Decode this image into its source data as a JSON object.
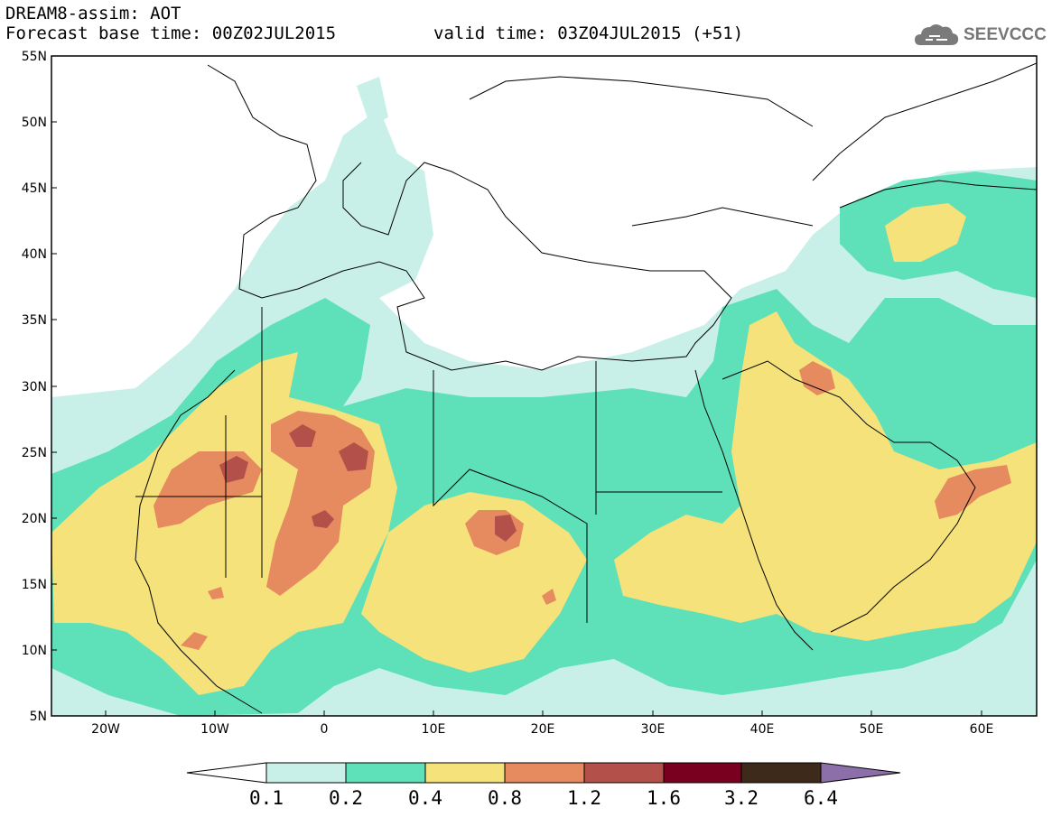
{
  "header": {
    "title": "DREAM8-assim: AOT",
    "base_time": "Forecast base time: 00Z02JUL2015",
    "valid_time": "valid time: 03Z04JUL2015 (+51)"
  },
  "logo": {
    "text": "SEEVCCC",
    "icon": "cloud-logo-icon"
  },
  "map": {
    "lat_labels": [
      "55N",
      "50N",
      "45N",
      "40N",
      "35N",
      "30N",
      "25N",
      "20N",
      "15N",
      "10N",
      "5N"
    ],
    "lon_labels": [
      "20W",
      "10W",
      "0",
      "10E",
      "20E",
      "30E",
      "40E",
      "50E",
      "60E"
    ],
    "variable": "Aerosol Optical Thickness"
  },
  "colorbar": {
    "levels": [
      "0.1",
      "0.2",
      "0.4",
      "0.8",
      "1.2",
      "1.6",
      "3.2",
      "6.4"
    ],
    "colors": [
      "#ffffff",
      "#c8f0e8",
      "#5ee0b8",
      "#f5e27a",
      "#e68a5f",
      "#b4504a",
      "#7a0020",
      "#3e2a1a",
      "#8c6ea8"
    ]
  }
}
